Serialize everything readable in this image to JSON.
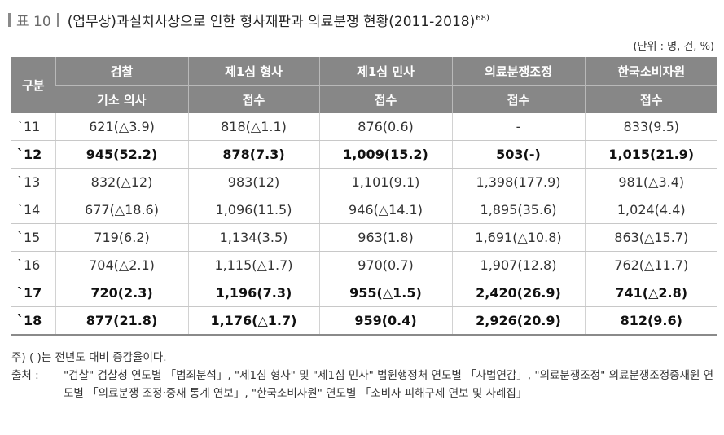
{
  "title": {
    "tag": "표 10",
    "text": "(업무상)과실치사상으로 인한 형사재판과 의료분쟁 현황(2011-2018)",
    "footnote": "68)"
  },
  "unit": "(단위 : 명, 건, %)",
  "table": {
    "corner": "구분",
    "groups": [
      "검찰",
      "제1심 형사",
      "제1심 민사",
      "의료분쟁조정",
      "한국소비자원"
    ],
    "subheaders": [
      "기소 의사",
      "접수",
      "접수",
      "접수",
      "접수"
    ],
    "rows": [
      {
        "year": "`11",
        "bold": false,
        "cells": [
          "621(△3.9)",
          "818(△1.1)",
          "876(0.6)",
          "-",
          "833(9.5)"
        ]
      },
      {
        "year": "`12",
        "bold": true,
        "cells": [
          "945(52.2)",
          "878(7.3)",
          "1,009(15.2)",
          "503(-)",
          "1,015(21.9)"
        ]
      },
      {
        "year": "`13",
        "bold": false,
        "cells": [
          "832(△12)",
          "983(12)",
          "1,101(9.1)",
          "1,398(177.9)",
          "981(△3.4)"
        ]
      },
      {
        "year": "`14",
        "bold": false,
        "cells": [
          "677(△18.6)",
          "1,096(11.5)",
          "946(△14.1)",
          "1,895(35.6)",
          "1,024(4.4)"
        ]
      },
      {
        "year": "`15",
        "bold": false,
        "cells": [
          "719(6.2)",
          "1,134(3.5)",
          "963(1.8)",
          "1,691(△10.8)",
          "863(△15.7)"
        ]
      },
      {
        "year": "`16",
        "bold": false,
        "cells": [
          "704(△2.1)",
          "1,115(△1.7)",
          "970(0.7)",
          "1,907(12.8)",
          "762(△11.7)"
        ]
      },
      {
        "year": "`17",
        "bold": true,
        "cells": [
          "720(2.3)",
          "1,196(7.3)",
          "955(△1.5)",
          "2,420(26.9)",
          "741(△2.8)"
        ]
      },
      {
        "year": "`18",
        "bold": true,
        "cells": [
          "877(21.8)",
          "1,176(△1.7)",
          "959(0.4)",
          "2,926(20.9)",
          "812(9.6)"
        ]
      }
    ]
  },
  "notes": {
    "note_label": "주) ( )는 전년도 대비 증감율이다.",
    "source_label": "출처 :",
    "source_text": "\"검찰\" 검찰청 연도별 「범죄분석」, \"제1심 형사\" 및 \"제1심 민사\" 법원행정처 연도별 「사법연감」, \"의료분쟁조정\" 의료분쟁조정중재원 연도별 「의료분쟁 조정·중재 통계 연보」, \"한국소비자원\" 연도별 「소비자 피해구제 연보 및 사례집」"
  }
}
